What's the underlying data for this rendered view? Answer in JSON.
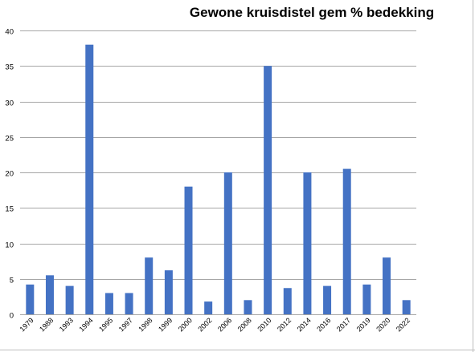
{
  "chart_data": {
    "type": "bar",
    "title": "Gewone kruisdistel gem % bedekking",
    "xlabel": "",
    "ylabel": "",
    "categories": [
      "1979",
      "1988",
      "1993",
      "1994",
      "1995",
      "1997",
      "1998",
      "1999",
      "2000",
      "2002",
      "2006",
      "2008",
      "2010",
      "2012",
      "2014",
      "2016",
      "2017",
      "2019",
      "2020",
      "2022"
    ],
    "values": [
      4.2,
      5.5,
      4.0,
      38.0,
      3.0,
      3.0,
      8.0,
      6.2,
      18.0,
      1.8,
      20.0,
      2.0,
      35.0,
      3.7,
      20.0,
      4.0,
      20.5,
      4.2,
      8.0,
      2.0
    ],
    "ylim": [
      0,
      40
    ],
    "yticks": [
      0,
      5,
      10,
      15,
      20,
      25,
      30,
      35,
      40
    ],
    "grid": true,
    "legend": "none",
    "colors": {
      "bar": "#4472C4",
      "grid": "#a6a6a6",
      "text": "#000000"
    }
  }
}
